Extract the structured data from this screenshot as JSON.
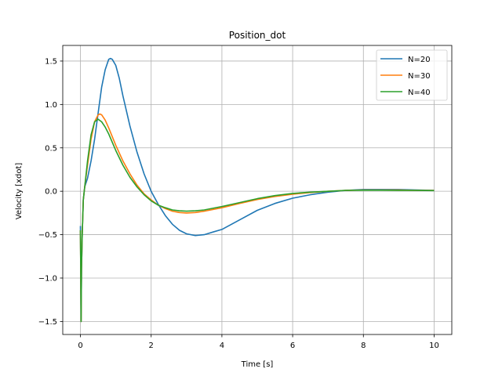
{
  "chart_data": {
    "type": "line",
    "title": "Position_dot",
    "xlabel": "Time [s]",
    "ylabel": "Velocity [xdot]",
    "xlim": [
      -0.5,
      10.5
    ],
    "ylim": [
      -1.65,
      1.68
    ],
    "xticks": [
      0,
      2,
      4,
      6,
      8,
      10
    ],
    "xtick_labels": [
      "0",
      "2",
      "4",
      "6",
      "8",
      "10"
    ],
    "yticks": [
      -1.5,
      -1.0,
      -0.5,
      0.0,
      0.5,
      1.0,
      1.5
    ],
    "ytick_labels": [
      "−1.5",
      "−1.0",
      "−0.5",
      "0.0",
      "0.5",
      "1.0",
      "1.5"
    ],
    "grid": true,
    "legend_position": "top-right",
    "series": [
      {
        "name": "N=20",
        "color": "#1f77b4",
        "x": [
          0,
          0.01,
          0.02,
          0.03,
          0.05,
          0.08,
          0.12,
          0.2,
          0.3,
          0.4,
          0.5,
          0.6,
          0.7,
          0.8,
          0.85,
          0.9,
          1.0,
          1.1,
          1.2,
          1.4,
          1.6,
          1.8,
          2.0,
          2.2,
          2.4,
          2.6,
          2.8,
          3.0,
          3.25,
          3.5,
          3.75,
          4.0,
          4.5,
          5.0,
          5.5,
          6.0,
          6.5,
          7.0,
          7.5,
          8.0,
          8.5,
          9.0,
          9.5,
          10.0
        ],
        "y": [
          -0.4,
          -1.0,
          -1.5,
          -0.9,
          -0.5,
          -0.1,
          0.05,
          0.15,
          0.35,
          0.6,
          0.9,
          1.2,
          1.4,
          1.52,
          1.53,
          1.52,
          1.45,
          1.3,
          1.1,
          0.75,
          0.45,
          0.2,
          0.0,
          -0.15,
          -0.28,
          -0.38,
          -0.45,
          -0.49,
          -0.51,
          -0.5,
          -0.47,
          -0.44,
          -0.33,
          -0.22,
          -0.14,
          -0.08,
          -0.04,
          -0.01,
          0.01,
          0.02,
          0.02,
          0.02,
          0.015,
          0.01
        ]
      },
      {
        "name": "N=30",
        "color": "#ff7f0e",
        "x": [
          0,
          0.01,
          0.02,
          0.03,
          0.05,
          0.08,
          0.12,
          0.2,
          0.3,
          0.4,
          0.5,
          0.55,
          0.6,
          0.7,
          0.8,
          1.0,
          1.2,
          1.4,
          1.6,
          1.8,
          2.0,
          2.2,
          2.4,
          2.6,
          2.8,
          3.0,
          3.25,
          3.5,
          4.0,
          4.5,
          5.0,
          5.5,
          6.0,
          6.5,
          7.0,
          7.5,
          8.0,
          8.5,
          9.0,
          9.5,
          10.0
        ],
        "y": [
          -0.45,
          -1.0,
          -1.5,
          -0.9,
          -0.5,
          -0.1,
          0.05,
          0.3,
          0.6,
          0.8,
          0.88,
          0.89,
          0.88,
          0.82,
          0.73,
          0.53,
          0.35,
          0.2,
          0.07,
          -0.03,
          -0.1,
          -0.16,
          -0.2,
          -0.23,
          -0.245,
          -0.25,
          -0.245,
          -0.23,
          -0.19,
          -0.14,
          -0.095,
          -0.06,
          -0.035,
          -0.015,
          0.0,
          0.01,
          0.015,
          0.015,
          0.015,
          0.01,
          0.01
        ]
      },
      {
        "name": "N=40",
        "color": "#2ca02c",
        "x": [
          0,
          0.01,
          0.02,
          0.03,
          0.05,
          0.08,
          0.12,
          0.2,
          0.3,
          0.4,
          0.5,
          0.6,
          0.7,
          0.8,
          1.0,
          1.2,
          1.4,
          1.6,
          1.8,
          2.0,
          2.2,
          2.4,
          2.6,
          2.8,
          3.0,
          3.25,
          3.5,
          4.0,
          4.5,
          5.0,
          5.5,
          6.0,
          6.5,
          7.0,
          7.5,
          8.0,
          8.5,
          9.0,
          9.5,
          10.0
        ],
        "y": [
          -0.45,
          -1.0,
          -1.5,
          -0.9,
          -0.5,
          -0.1,
          0.05,
          0.35,
          0.65,
          0.8,
          0.83,
          0.8,
          0.74,
          0.66,
          0.47,
          0.3,
          0.16,
          0.05,
          -0.04,
          -0.11,
          -0.16,
          -0.19,
          -0.215,
          -0.225,
          -0.23,
          -0.225,
          -0.215,
          -0.175,
          -0.13,
          -0.085,
          -0.05,
          -0.025,
          -0.01,
          0.0,
          0.01,
          0.012,
          0.012,
          0.01,
          0.01,
          0.008
        ]
      }
    ]
  }
}
